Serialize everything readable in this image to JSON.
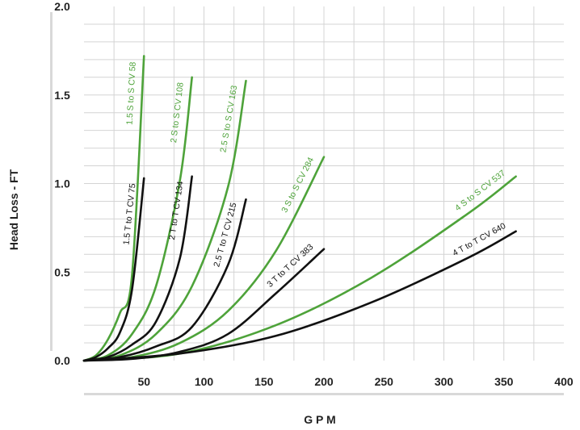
{
  "chart_data": {
    "type": "line",
    "title": "",
    "xlabel": "G P M",
    "ylabel": "Head Loss - FT",
    "xlim": [
      0,
      400
    ],
    "ylim": [
      0,
      2.0
    ],
    "grid": true,
    "x_ticks": [
      "50",
      "100",
      "150",
      "200",
      "250",
      "300",
      "350",
      "400"
    ],
    "y_ticks": [
      "0.0",
      "0.5",
      "1.0",
      "1.5",
      "2.0"
    ],
    "colors": {
      "S to S": "#4ea33a",
      "T to T": "#111111",
      "grid": "#d4d4d4",
      "axis": "#d9d9d9"
    },
    "series": [
      {
        "name": "1.5 S to S CV 58",
        "group": "S to S",
        "cv": 58,
        "x": [
          0,
          10,
          20,
          30,
          40,
          50
        ],
        "y": [
          0,
          0.03,
          0.12,
          0.27,
          0.48,
          1.72
        ]
      },
      {
        "name": "2 S to S CV 108",
        "group": "S to S",
        "cv": 108,
        "x": [
          0,
          20,
          40,
          60,
          80,
          90
        ],
        "y": [
          0,
          0.03,
          0.15,
          0.42,
          1.02,
          1.6
        ]
      },
      {
        "name": "2.5 S to S CV 163",
        "group": "S to S",
        "cv": 163,
        "x": [
          0,
          30,
          60,
          90,
          120,
          135
        ],
        "y": [
          0,
          0.03,
          0.15,
          0.42,
          0.98,
          1.58
        ]
      },
      {
        "name": "3 S to S CV 284",
        "group": "S to S",
        "cv": 284,
        "x": [
          0,
          40,
          80,
          120,
          160,
          200
        ],
        "y": [
          0,
          0.02,
          0.1,
          0.28,
          0.62,
          1.15
        ]
      },
      {
        "name": "4 S to S CV 537",
        "group": "S to S",
        "cv": 537,
        "x": [
          0,
          80,
          160,
          240,
          320,
          360
        ],
        "y": [
          0,
          0.04,
          0.2,
          0.47,
          0.83,
          1.04
        ]
      },
      {
        "name": "1.5 T to T CV 75",
        "group": "T to T",
        "cv": 75,
        "x": [
          0,
          10,
          20,
          30,
          40,
          50
        ],
        "y": [
          0,
          0.02,
          0.07,
          0.16,
          0.4,
          1.03
        ]
      },
      {
        "name": "2 T to T CV 134",
        "group": "T to T",
        "cv": 134,
        "x": [
          0,
          20,
          40,
          60,
          80,
          90
        ],
        "y": [
          0,
          0.02,
          0.09,
          0.22,
          0.58,
          1.04
        ]
      },
      {
        "name": "2.5 T to T CV 215",
        "group": "T to T",
        "cv": 215,
        "x": [
          0,
          30,
          60,
          90,
          120,
          135
        ],
        "y": [
          0,
          0.02,
          0.08,
          0.19,
          0.54,
          0.91
        ]
      },
      {
        "name": "3 T to T CV 383",
        "group": "T to T",
        "cv": 383,
        "x": [
          0,
          40,
          80,
          120,
          160,
          200
        ],
        "y": [
          0,
          0.01,
          0.05,
          0.15,
          0.38,
          0.63
        ]
      },
      {
        "name": "4 T to T CV 640",
        "group": "T to T",
        "cv": 640,
        "x": [
          0,
          80,
          160,
          240,
          320,
          360
        ],
        "y": [
          0,
          0.04,
          0.14,
          0.33,
          0.58,
          0.73
        ]
      }
    ]
  }
}
